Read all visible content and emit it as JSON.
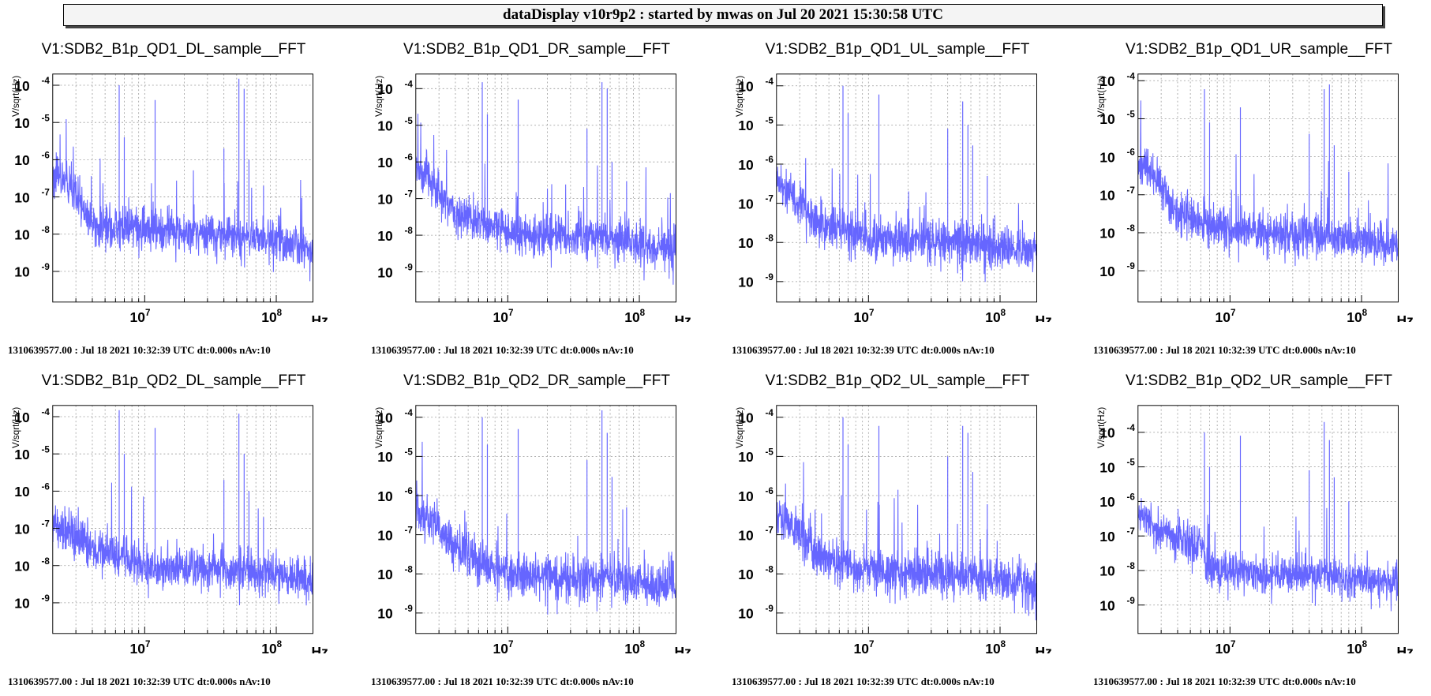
{
  "header": {
    "title": "dataDisplay v10r9p2 : started by mwas on Jul 20 2021 15:30:58 UTC"
  },
  "colors": {
    "trace": "#6666ff",
    "grid": "#999999",
    "frame": "#000000"
  },
  "chart_data": [
    {
      "type": "line",
      "title": "V1:SDB2_B1p_QD1_DL_sample__FFT",
      "xlabel": "Hz",
      "ylabel": "V/sqrt(Hz)",
      "xscale": "log",
      "yscale": "log",
      "xlim": [
        2000000,
        190000000
      ],
      "ylim": [
        1.5e-10,
        0.0002
      ],
      "grid": true,
      "yticks": [
        {
          "base": "10",
          "exp": "-9",
          "value": 1e-09
        },
        {
          "base": "10",
          "exp": "-8",
          "value": 1e-08
        },
        {
          "base": "10",
          "exp": "-7",
          "value": 1e-07
        },
        {
          "base": "10",
          "exp": "-6",
          "value": 1e-06
        },
        {
          "base": "10",
          "exp": "-5",
          "value": 1e-05
        },
        {
          "base": "10",
          "exp": "-4",
          "value": 0.0001
        }
      ],
      "xticks": [
        {
          "base": "10",
          "exp": "7",
          "value": 10000000
        },
        {
          "base": "10",
          "exp": "8",
          "value": 100000000
        }
      ],
      "noise_floor": [
        [
          2000000,
          4e-07
        ],
        [
          2500000,
          2.5e-07
        ],
        [
          4000000,
          1.8e-08
        ],
        [
          10000000,
          1.3e-08
        ],
        [
          40000000,
          1e-08
        ],
        [
          100000000,
          7e-09
        ],
        [
          190000000,
          4e-09
        ]
      ],
      "peaks": [
        [
          6400000,
          0.0001
        ],
        [
          7000000,
          4e-06
        ],
        [
          12000000,
          4e-05
        ],
        [
          40000000,
          2e-06
        ],
        [
          52000000,
          0.00015
        ],
        [
          57000000,
          8e-05
        ],
        [
          62000000,
          1e-06
        ],
        [
          80000000,
          2e-07
        ]
      ],
      "footer": "1310639577.00 : Jul 18 2021 10:32:39 UTC dt:0.000s nAv:10"
    },
    {
      "type": "line",
      "title": "V1:SDB2_B1p_QD1_DR_sample__FFT",
      "xlabel": "Hz",
      "ylabel": "V/sqrt(Hz)",
      "xscale": "log",
      "yscale": "log",
      "xlim": [
        2000000,
        190000000
      ],
      "ylim": [
        1.5e-10,
        0.00025
      ],
      "grid": true,
      "yticks": [
        {
          "base": "10",
          "exp": "-9",
          "value": 1e-09
        },
        {
          "base": "10",
          "exp": "-8",
          "value": 1e-08
        },
        {
          "base": "10",
          "exp": "-7",
          "value": 1e-07
        },
        {
          "base": "10",
          "exp": "-6",
          "value": 1e-06
        },
        {
          "base": "10",
          "exp": "-5",
          "value": 1e-05
        },
        {
          "base": "10",
          "exp": "-4",
          "value": 0.0001
        }
      ],
      "xticks": [
        {
          "base": "10",
          "exp": "7",
          "value": 10000000
        },
        {
          "base": "10",
          "exp": "8",
          "value": 100000000
        }
      ],
      "noise_floor": [
        [
          2000000,
          7e-07
        ],
        [
          2500000,
          4e-07
        ],
        [
          4000000,
          4e-08
        ],
        [
          10000000,
          1.2e-08
        ],
        [
          40000000,
          9e-09
        ],
        [
          100000000,
          6e-09
        ],
        [
          190000000,
          4e-09
        ]
      ],
      "peaks": [
        [
          6400000,
          0.00015
        ],
        [
          7000000,
          2e-05
        ],
        [
          12000000,
          5e-05
        ],
        [
          40000000,
          8e-06
        ],
        [
          52000000,
          0.00015
        ],
        [
          57000000,
          0.0001
        ],
        [
          62000000,
          1e-06
        ],
        [
          80000000,
          3e-07
        ]
      ],
      "footer": "1310639577.00 : Jul 18 2021 10:32:39 UTC dt:0.000s nAv:10"
    },
    {
      "type": "line",
      "title": "V1:SDB2_B1p_QD1_UL_sample__FFT",
      "xlabel": "Hz",
      "ylabel": "V/sqrt(Hz)",
      "xscale": "log",
      "yscale": "log",
      "xlim": [
        2000000,
        190000000
      ],
      "ylim": [
        3e-10,
        0.0002
      ],
      "grid": true,
      "yticks": [
        {
          "base": "10",
          "exp": "-9",
          "value": 1e-09
        },
        {
          "base": "10",
          "exp": "-8",
          "value": 1e-08
        },
        {
          "base": "10",
          "exp": "-7",
          "value": 1e-07
        },
        {
          "base": "10",
          "exp": "-6",
          "value": 1e-06
        },
        {
          "base": "10",
          "exp": "-5",
          "value": 1e-05
        },
        {
          "base": "10",
          "exp": "-4",
          "value": 0.0001
        }
      ],
      "xticks": [
        {
          "base": "10",
          "exp": "7",
          "value": 10000000
        },
        {
          "base": "10",
          "exp": "8",
          "value": 100000000
        }
      ],
      "noise_floor": [
        [
          2000000,
          4e-07
        ],
        [
          2500000,
          2e-07
        ],
        [
          4000000,
          3e-08
        ],
        [
          10000000,
          1.3e-08
        ],
        [
          40000000,
          1e-08
        ],
        [
          100000000,
          8e-09
        ],
        [
          190000000,
          6e-09
        ]
      ],
      "peaks": [
        [
          6400000,
          0.0001
        ],
        [
          7000000,
          2e-05
        ],
        [
          12000000,
          6e-05
        ],
        [
          40000000,
          8e-06
        ],
        [
          52000000,
          4e-05
        ],
        [
          57000000,
          1e-05
        ],
        [
          62000000,
          3e-06
        ],
        [
          80000000,
          5e-07
        ]
      ],
      "footer": "1310639577.00 : Jul 18 2021 10:32:39 UTC dt:0.000s nAv:10"
    },
    {
      "type": "line",
      "title": "V1:SDB2_B1p_QD1_UR_sample__FFT",
      "xlabel": "Hz",
      "ylabel": "V/sqrt(Hz)",
      "xscale": "log",
      "yscale": "log",
      "xlim": [
        2000000,
        190000000
      ],
      "ylim": [
        1.5e-10,
        0.00015
      ],
      "grid": true,
      "yticks": [
        {
          "base": "10",
          "exp": "-9",
          "value": 1e-09
        },
        {
          "base": "10",
          "exp": "-8",
          "value": 1e-08
        },
        {
          "base": "10",
          "exp": "-7",
          "value": 1e-07
        },
        {
          "base": "10",
          "exp": "-6",
          "value": 1e-06
        },
        {
          "base": "10",
          "exp": "-5",
          "value": 1e-05
        },
        {
          "base": "10",
          "exp": "-4",
          "value": 0.0001
        }
      ],
      "xticks": [
        {
          "base": "10",
          "exp": "7",
          "value": 10000000
        },
        {
          "base": "10",
          "exp": "8",
          "value": 100000000
        }
      ],
      "noise_floor": [
        [
          2000000,
          6e-07
        ],
        [
          2500000,
          4e-07
        ],
        [
          4000000,
          3e-08
        ],
        [
          10000000,
          1.2e-08
        ],
        [
          40000000,
          8e-09
        ],
        [
          100000000,
          6e-09
        ],
        [
          190000000,
          4e-09
        ]
      ],
      "peaks": [
        [
          6400000,
          6e-05
        ],
        [
          7000000,
          8e-06
        ],
        [
          12000000,
          2e-05
        ],
        [
          40000000,
          4e-06
        ],
        [
          52000000,
          6e-05
        ],
        [
          57000000,
          8e-05
        ],
        [
          62000000,
          2e-06
        ],
        [
          80000000,
          4e-07
        ]
      ],
      "footer": "1310639577.00 : Jul 18 2021 10:32:39 UTC dt:0.000s nAv:10"
    },
    {
      "type": "line",
      "title": "V1:SDB2_B1p_QD2_DL_sample__FFT",
      "xlabel": "Hz",
      "ylabel": "V/sqrt(Hz)",
      "xscale": "log",
      "yscale": "log",
      "xlim": [
        2000000,
        190000000
      ],
      "ylim": [
        1.5e-10,
        0.0002
      ],
      "grid": true,
      "yticks": [
        {
          "base": "10",
          "exp": "-9",
          "value": 1e-09
        },
        {
          "base": "10",
          "exp": "-8",
          "value": 1e-08
        },
        {
          "base": "10",
          "exp": "-7",
          "value": 1e-07
        },
        {
          "base": "10",
          "exp": "-6",
          "value": 1e-06
        },
        {
          "base": "10",
          "exp": "-5",
          "value": 1e-05
        },
        {
          "base": "10",
          "exp": "-4",
          "value": 0.0001
        }
      ],
      "xticks": [
        {
          "base": "10",
          "exp": "7",
          "value": 10000000
        },
        {
          "base": "10",
          "exp": "8",
          "value": 100000000
        }
      ],
      "noise_floor": [
        [
          2000000,
          1.5e-07
        ],
        [
          2500000,
          1e-07
        ],
        [
          4000000,
          3e-08
        ],
        [
          10000000,
          1e-08
        ],
        [
          40000000,
          8e-09
        ],
        [
          100000000,
          6e-09
        ],
        [
          190000000,
          4e-09
        ]
      ],
      "peaks": [
        [
          6400000,
          0.00015
        ],
        [
          7000000,
          1e-05
        ],
        [
          12000000,
          5e-05
        ],
        [
          40000000,
          2e-06
        ],
        [
          52000000,
          0.00012
        ],
        [
          57000000,
          1e-05
        ],
        [
          62000000,
          1e-06
        ],
        [
          80000000,
          2e-07
        ]
      ],
      "footer": "1310639577.00 : Jul 18 2021 10:32:39 UTC dt:0.000s nAv:10"
    },
    {
      "type": "line",
      "title": "V1:SDB2_B1p_QD2_DR_sample__FFT",
      "xlabel": "Hz",
      "ylabel": "V/sqrt(Hz)",
      "xscale": "log",
      "yscale": "log",
      "xlim": [
        2000000,
        190000000
      ],
      "ylim": [
        3e-10,
        0.0002
      ],
      "grid": true,
      "yticks": [
        {
          "base": "10",
          "exp": "-9",
          "value": 1e-09
        },
        {
          "base": "10",
          "exp": "-8",
          "value": 1e-08
        },
        {
          "base": "10",
          "exp": "-7",
          "value": 1e-07
        },
        {
          "base": "10",
          "exp": "-6",
          "value": 1e-06
        },
        {
          "base": "10",
          "exp": "-5",
          "value": 1e-05
        },
        {
          "base": "10",
          "exp": "-4",
          "value": 0.0001
        }
      ],
      "xticks": [
        {
          "base": "10",
          "exp": "7",
          "value": 10000000
        },
        {
          "base": "10",
          "exp": "8",
          "value": 100000000
        }
      ],
      "noise_floor": [
        [
          2000000,
          5e-07
        ],
        [
          2500000,
          3e-07
        ],
        [
          4000000,
          5e-08
        ],
        [
          10000000,
          1e-08
        ],
        [
          40000000,
          8e-09
        ],
        [
          100000000,
          6e-09
        ],
        [
          190000000,
          5e-09
        ]
      ],
      "peaks": [
        [
          6400000,
          0.0001
        ],
        [
          7000000,
          2e-05
        ],
        [
          12000000,
          5e-05
        ],
        [
          40000000,
          8e-06
        ],
        [
          52000000,
          0.00015
        ],
        [
          57000000,
          4e-05
        ],
        [
          62000000,
          3e-06
        ],
        [
          80000000,
          5e-07
        ]
      ],
      "footer": "1310639577.00 : Jul 18 2021 10:32:39 UTC dt:0.000s nAv:10"
    },
    {
      "type": "line",
      "title": "V1:SDB2_B1p_QD2_UL_sample__FFT",
      "xlabel": "Hz",
      "ylabel": "V/sqrt(Hz)",
      "xscale": "log",
      "yscale": "log",
      "xlim": [
        2000000,
        190000000
      ],
      "ylim": [
        3e-10,
        0.0002
      ],
      "grid": true,
      "yticks": [
        {
          "base": "10",
          "exp": "-9",
          "value": 1e-09
        },
        {
          "base": "10",
          "exp": "-8",
          "value": 1e-08
        },
        {
          "base": "10",
          "exp": "-7",
          "value": 1e-07
        },
        {
          "base": "10",
          "exp": "-6",
          "value": 1e-06
        },
        {
          "base": "10",
          "exp": "-5",
          "value": 1e-05
        },
        {
          "base": "10",
          "exp": "-4",
          "value": 0.0001
        }
      ],
      "xticks": [
        {
          "base": "10",
          "exp": "7",
          "value": 10000000
        },
        {
          "base": "10",
          "exp": "8",
          "value": 100000000
        }
      ],
      "noise_floor": [
        [
          2000000,
          3e-07
        ],
        [
          2500000,
          2e-07
        ],
        [
          4000000,
          3e-08
        ],
        [
          10000000,
          1.2e-08
        ],
        [
          40000000,
          9e-09
        ],
        [
          100000000,
          7e-09
        ],
        [
          190000000,
          5e-09
        ]
      ],
      "peaks": [
        [
          6400000,
          0.0001
        ],
        [
          7000000,
          2e-05
        ],
        [
          12000000,
          6e-05
        ],
        [
          40000000,
          1e-05
        ],
        [
          52000000,
          6e-05
        ],
        [
          57000000,
          4e-05
        ],
        [
          62000000,
          4e-06
        ],
        [
          80000000,
          6e-07
        ]
      ],
      "footer": "1310639577.00 : Jul 18 2021 10:32:39 UTC dt:0.000s nAv:10"
    },
    {
      "type": "line",
      "title": "V1:SDB2_B1p_QD2_UR_sample__FFT",
      "xlabel": "Hz",
      "ylabel": "V/sqrt(Hz)",
      "xscale": "log",
      "yscale": "log",
      "xlim": [
        2000000,
        190000000
      ],
      "ylim": [
        1.5e-10,
        0.0006
      ],
      "grid": true,
      "yticks": [
        {
          "base": "10",
          "exp": "-9",
          "value": 1e-09
        },
        {
          "base": "10",
          "exp": "-8",
          "value": 1e-08
        },
        {
          "base": "10",
          "exp": "-7",
          "value": 1e-07
        },
        {
          "base": "10",
          "exp": "-6",
          "value": 1e-06
        },
        {
          "base": "10",
          "exp": "-5",
          "value": 1e-05
        },
        {
          "base": "10",
          "exp": "-4",
          "value": 0.0001
        }
      ],
      "xticks": [
        {
          "base": "10",
          "exp": "7",
          "value": 10000000
        },
        {
          "base": "10",
          "exp": "8",
          "value": 100000000
        }
      ],
      "noise_floor": [
        [
          2000000,
          4e-07
        ],
        [
          2500000,
          2e-07
        ],
        [
          6400000,
          4e-08
        ],
        [
          6600000,
          1e-08
        ],
        [
          40000000,
          8e-09
        ],
        [
          100000000,
          6e-09
        ],
        [
          190000000,
          4e-09
        ]
      ],
      "peaks": [
        [
          6400000,
          0.0001
        ],
        [
          7000000,
          1e-05
        ],
        [
          12000000,
          8e-05
        ],
        [
          40000000,
          8e-06
        ],
        [
          52000000,
          0.0002
        ],
        [
          57000000,
          6e-05
        ],
        [
          62000000,
          5e-06
        ],
        [
          80000000,
          1e-06
        ]
      ],
      "footer": "1310639577.00 : Jul 18 2021 10:32:39 UTC dt:0.000s nAv:10"
    }
  ]
}
